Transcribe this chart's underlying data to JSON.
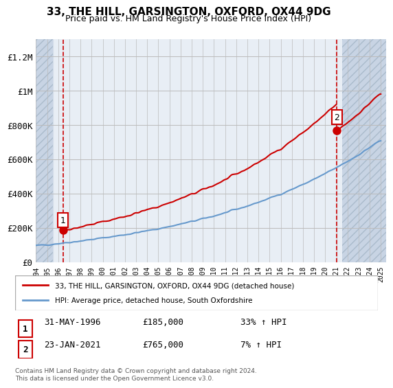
{
  "title": "33, THE HILL, GARSINGTON, OXFORD, OX44 9DG",
  "subtitle": "Price paid vs. HM Land Registry's House Price Index (HPI)",
  "legend_line1": "33, THE HILL, GARSINGTON, OXFORD, OX44 9DG (detached house)",
  "legend_line2": "HPI: Average price, detached house, South Oxfordshire",
  "annotation1_label": "1",
  "annotation1_date": "31-MAY-1996",
  "annotation1_price": "£185,000",
  "annotation1_hpi": "33% ↑ HPI",
  "annotation2_label": "2",
  "annotation2_date": "23-JAN-2021",
  "annotation2_price": "£765,000",
  "annotation2_hpi": "7% ↑ HPI",
  "footer": "Contains HM Land Registry data © Crown copyright and database right 2024.\nThis data is licensed under the Open Government Licence v3.0.",
  "price_color": "#cc0000",
  "hpi_color": "#6699cc",
  "background_hatch_color": "#d0d8e8",
  "ylim": [
    0,
    1300000
  ],
  "yticks": [
    0,
    200000,
    400000,
    600000,
    800000,
    1000000,
    1200000
  ],
  "ytick_labels": [
    "£0",
    "£200K",
    "£400K",
    "£600K",
    "£800K",
    "£1M",
    "£1.2M"
  ],
  "xstart_year": 1994,
  "xend_year": 2025,
  "purchase1_year": 1996.42,
  "purchase1_price": 185000,
  "purchase2_year": 2021.05,
  "purchase2_price": 765000
}
